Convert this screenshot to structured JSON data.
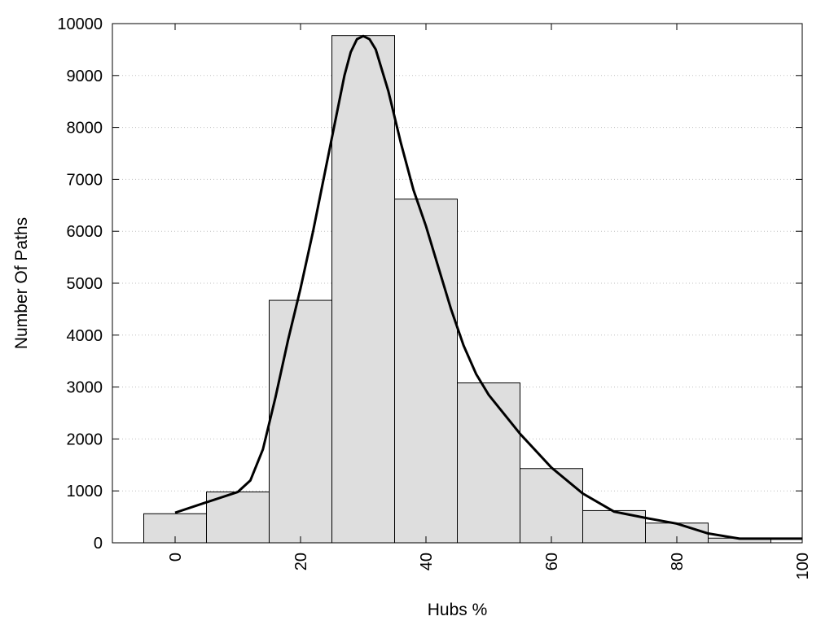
{
  "chart_data": {
    "type": "bar",
    "title": "",
    "xlabel": "Hubs %",
    "ylabel": "Number Of Paths",
    "xlim": [
      -10,
      100
    ],
    "ylim": [
      0,
      10000
    ],
    "grid": "horizontal-dotted",
    "legend": "none",
    "bar_color": "#dedede",
    "line_color": "#000000",
    "bin_width": 10,
    "x_ticks": [
      0,
      20,
      40,
      60,
      80,
      100
    ],
    "x_tick_labels": [
      "0",
      "20",
      "40",
      "60",
      "80",
      "100"
    ],
    "y_ticks": [
      0,
      1000,
      2000,
      3000,
      4000,
      5000,
      6000,
      7000,
      8000,
      9000,
      10000
    ],
    "y_tick_labels": [
      "0",
      "1000",
      "2000",
      "3000",
      "4000",
      "5000",
      "6000",
      "7000",
      "8000",
      "9000",
      "10000"
    ],
    "bars": [
      {
        "x": 0,
        "value": 560
      },
      {
        "x": 10,
        "value": 980
      },
      {
        "x": 20,
        "value": 4670
      },
      {
        "x": 30,
        "value": 9770
      },
      {
        "x": 40,
        "value": 6620
      },
      {
        "x": 50,
        "value": 3080
      },
      {
        "x": 60,
        "value": 1430
      },
      {
        "x": 70,
        "value": 620
      },
      {
        "x": 80,
        "value": 380
      },
      {
        "x": 90,
        "value": 90
      }
    ],
    "density_curve": {
      "x": [
        0,
        5,
        10,
        12,
        14,
        16,
        18,
        20,
        22,
        24,
        26,
        27,
        28,
        29,
        30,
        31,
        32,
        34,
        36,
        38,
        40,
        42,
        44,
        46,
        48,
        50,
        55,
        60,
        65,
        70,
        75,
        80,
        85,
        90,
        95,
        100
      ],
      "y": [
        580,
        780,
        980,
        1200,
        1800,
        2800,
        3900,
        4900,
        6000,
        7200,
        8400,
        9000,
        9450,
        9700,
        9760,
        9700,
        9500,
        8700,
        7700,
        6800,
        6100,
        5300,
        4500,
        3800,
        3250,
        2850,
        2100,
        1450,
        950,
        600,
        480,
        370,
        180,
        80,
        80,
        80
      ]
    }
  }
}
